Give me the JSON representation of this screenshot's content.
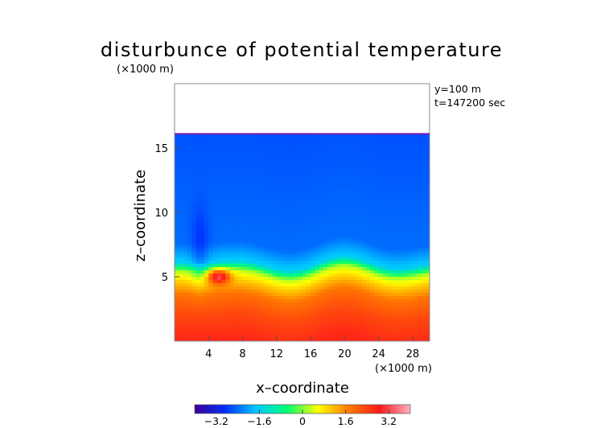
{
  "chart_data": {
    "type": "heatmap",
    "title": "disturbunce of potential temperature",
    "z_unit_label": "(×1000 m)",
    "x_unit_label": "(×1000 m)",
    "xlabel": "x–coordinate",
    "ylabel": "z–coordinate",
    "info": [
      "y=100 m",
      "t=147200 sec"
    ],
    "xlim": [
      0,
      30
    ],
    "ylim": [
      0,
      20
    ],
    "x_ticks": [
      4,
      8,
      12,
      16,
      20,
      24,
      28
    ],
    "y_ticks": [
      5,
      10,
      15
    ],
    "colorbar": {
      "range": [
        -4.0,
        4.0
      ],
      "ticks": [
        -3.2,
        -1.6,
        0,
        1.6,
        3.2
      ],
      "tick_labels": [
        "−3.2",
        "−1.6",
        "0",
        "1.6",
        "3.2"
      ],
      "colors": [
        "#3c0096",
        "#0030ff",
        "#00c8ff",
        "#00ff70",
        "#ffff00",
        "#ff7a00",
        "#ff1a1a",
        "#ffb0c0"
      ]
    },
    "field": {
      "data_top_z": 16.1,
      "rows_value_by_z": [
        {
          "z": 0.0,
          "value": 2.7
        },
        {
          "z": 2.0,
          "value": 2.3
        },
        {
          "z": 3.5,
          "value": 1.8
        },
        {
          "z": 4.5,
          "value": 1.0
        },
        {
          "z": 5.3,
          "value": 0.2
        },
        {
          "z": 6.0,
          "value": -1.6
        },
        {
          "z": 7.5,
          "value": -2.4
        },
        {
          "z": 16.1,
          "value": -2.6
        }
      ],
      "features": [
        {
          "kind": "warm_blob",
          "x": 5.2,
          "z": 5.0,
          "value": 3.3
        },
        {
          "kind": "cold_column",
          "x": 3.0,
          "z": 8.0,
          "value": -3.1
        }
      ]
    }
  }
}
